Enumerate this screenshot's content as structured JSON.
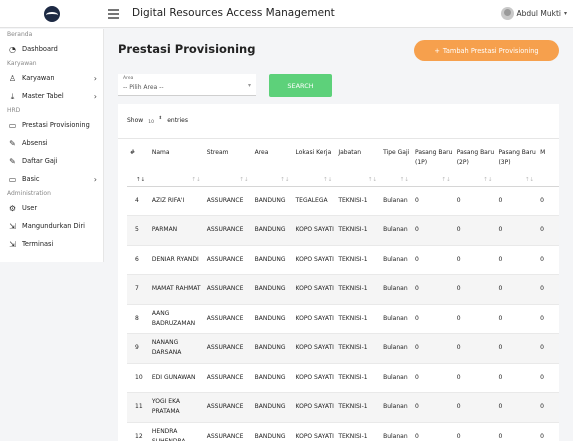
{
  "app": {
    "title": "Digital Resources Access Management",
    "user": "Abdul Mukti"
  },
  "sidebar": {
    "items": [
      {
        "type": "section",
        "label": "Beranda"
      },
      {
        "type": "item",
        "label": "Dashboard",
        "icon": "speedometer-icon",
        "glyph": "◔"
      },
      {
        "type": "section",
        "label": "Karyawan"
      },
      {
        "type": "item",
        "label": "Karyawan",
        "icon": "user-icon",
        "glyph": "♙",
        "chevron": true
      },
      {
        "type": "item",
        "label": "Master Tabel",
        "icon": "download-icon",
        "glyph": "⤓",
        "chevron": true
      },
      {
        "type": "section",
        "label": "HRD"
      },
      {
        "type": "item",
        "label": "Prestasi Provisioning",
        "icon": "book-icon",
        "glyph": "▭"
      },
      {
        "type": "item",
        "label": "Absensi",
        "icon": "edit-icon",
        "glyph": "✎"
      },
      {
        "type": "item",
        "label": "Daftar Gaji",
        "icon": "edit-icon",
        "glyph": "✎"
      },
      {
        "type": "item",
        "label": "Basic",
        "icon": "book-icon",
        "glyph": "▭",
        "chevron": true
      },
      {
        "type": "section",
        "label": "Administration"
      },
      {
        "type": "item",
        "label": "User",
        "icon": "settings-icon",
        "glyph": "⚙"
      },
      {
        "type": "item",
        "label": "Mangundurkan Diri",
        "icon": "exit-icon",
        "glyph": "⇲"
      },
      {
        "type": "item",
        "label": "Terminasi",
        "icon": "exit-icon",
        "glyph": "⇲"
      }
    ]
  },
  "main": {
    "title": "Prestasi Provisioning",
    "add_button": "Tambah Prestasi Provisioning",
    "filter": {
      "label": "Area",
      "value": "-- Pilih Area --"
    },
    "search_button": "SEARCH",
    "show_label": "Show",
    "entries_label": "entries",
    "page_length": "10"
  },
  "table": {
    "columns": [
      {
        "label": "#",
        "width": 22
      },
      {
        "label": "Nama",
        "width": 55
      },
      {
        "label": "Stream",
        "width": 48
      },
      {
        "label": "Area",
        "width": 41
      },
      {
        "label": "Lokasi Kerja",
        "width": 43
      },
      {
        "label": "Jabatan",
        "width": 45
      },
      {
        "label": "Tipe Gaji",
        "width": 32
      },
      {
        "label": "Pasang Baru (1P)",
        "width": 42
      },
      {
        "label": "Pasang Baru (2P)",
        "width": 42
      },
      {
        "label": "Pasang Baru (3P)",
        "width": 42
      },
      {
        "label": "M",
        "width": 22
      }
    ],
    "rows": [
      [
        "4",
        "AZIZ RIFA'I",
        "ASSURANCE",
        "BANDUNG",
        "TEGALEGA",
        "TEKNISI-1",
        "Bulanan",
        "0",
        "0",
        "0",
        "0"
      ],
      [
        "5",
        "PARMAN",
        "ASSURANCE",
        "BANDUNG",
        "KOPO SAYATI",
        "TEKNISI-1",
        "Bulanan",
        "0",
        "0",
        "0",
        "0"
      ],
      [
        "6",
        "DENIAR RYANDI",
        "ASSURANCE",
        "BANDUNG",
        "KOPO SAYATI",
        "TEKNISI-1",
        "Bulanan",
        "0",
        "0",
        "0",
        "0"
      ],
      [
        "7",
        "MAMAT RAHMAT",
        "ASSURANCE",
        "BANDUNG",
        "KOPO SAYATI",
        "TEKNISI-1",
        "Bulanan",
        "0",
        "0",
        "0",
        "0"
      ],
      [
        "8",
        "AANG BADRUZAMAN",
        "ASSURANCE",
        "BANDUNG",
        "KOPO SAYATI",
        "TEKNISI-1",
        "Bulanan",
        "0",
        "0",
        "0",
        "0"
      ],
      [
        "9",
        "NANANG DARSANA",
        "ASSURANCE",
        "BANDUNG",
        "KOPO SAYATI",
        "TEKNISI-1",
        "Bulanan",
        "0",
        "0",
        "0",
        "0"
      ],
      [
        "10",
        "EDI GUNAWAN",
        "ASSURANCE",
        "BANDUNG",
        "KOPO SAYATI",
        "TEKNISI-1",
        "Bulanan",
        "0",
        "0",
        "0",
        "0"
      ],
      [
        "11",
        "YOGI EKA PRATAMA",
        "ASSURANCE",
        "BANDUNG",
        "KOPO SAYATI",
        "TEKNISI-1",
        "Bulanan",
        "0",
        "0",
        "0",
        "0"
      ],
      [
        "12",
        "HENDRA SUHENDRA",
        "ASSURANCE",
        "BANDUNG",
        "KOPO SAYATI",
        "TEKNISI-1",
        "Bulanan",
        "0",
        "0",
        "0",
        "0"
      ]
    ]
  }
}
